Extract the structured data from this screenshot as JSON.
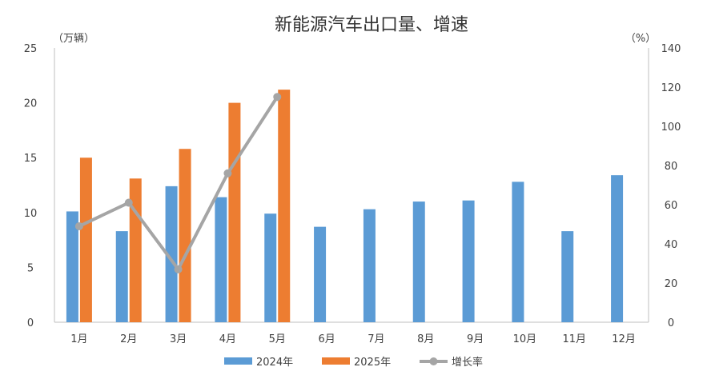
{
  "chart_data": {
    "type": "bar",
    "title": "新能源汽车出口量、增速",
    "left_unit": "（万辆）",
    "right_unit": "（%）",
    "categories": [
      "1月",
      "2月",
      "3月",
      "4月",
      "5月",
      "6月",
      "7月",
      "8月",
      "9月",
      "10月",
      "11月",
      "12月"
    ],
    "series": [
      {
        "name": "2024年",
        "type": "bar",
        "axis": "left",
        "color": "#5b9bd5",
        "values": [
          10.1,
          8.3,
          12.4,
          11.4,
          9.9,
          8.7,
          10.3,
          11.0,
          11.1,
          12.8,
          8.3,
          13.4
        ]
      },
      {
        "name": "2025年",
        "type": "bar",
        "axis": "left",
        "color": "#ed7d31",
        "values": [
          15.0,
          13.1,
          15.8,
          20.0,
          21.2,
          null,
          null,
          null,
          null,
          null,
          null,
          null
        ]
      },
      {
        "name": "增长率",
        "type": "line",
        "axis": "right",
        "color": "#a5a5a5",
        "values": [
          49,
          61,
          27,
          76,
          115,
          null,
          null,
          null,
          null,
          null,
          null,
          null
        ]
      }
    ],
    "ylim_left": [
      0,
      25
    ],
    "yticks_left": [
      0,
      5,
      10,
      15,
      20,
      25
    ],
    "ylim_right": [
      0,
      140
    ],
    "yticks_right": [
      0,
      20,
      40,
      60,
      80,
      100,
      120,
      140
    ],
    "grid": false,
    "legend_position": "bottom"
  }
}
